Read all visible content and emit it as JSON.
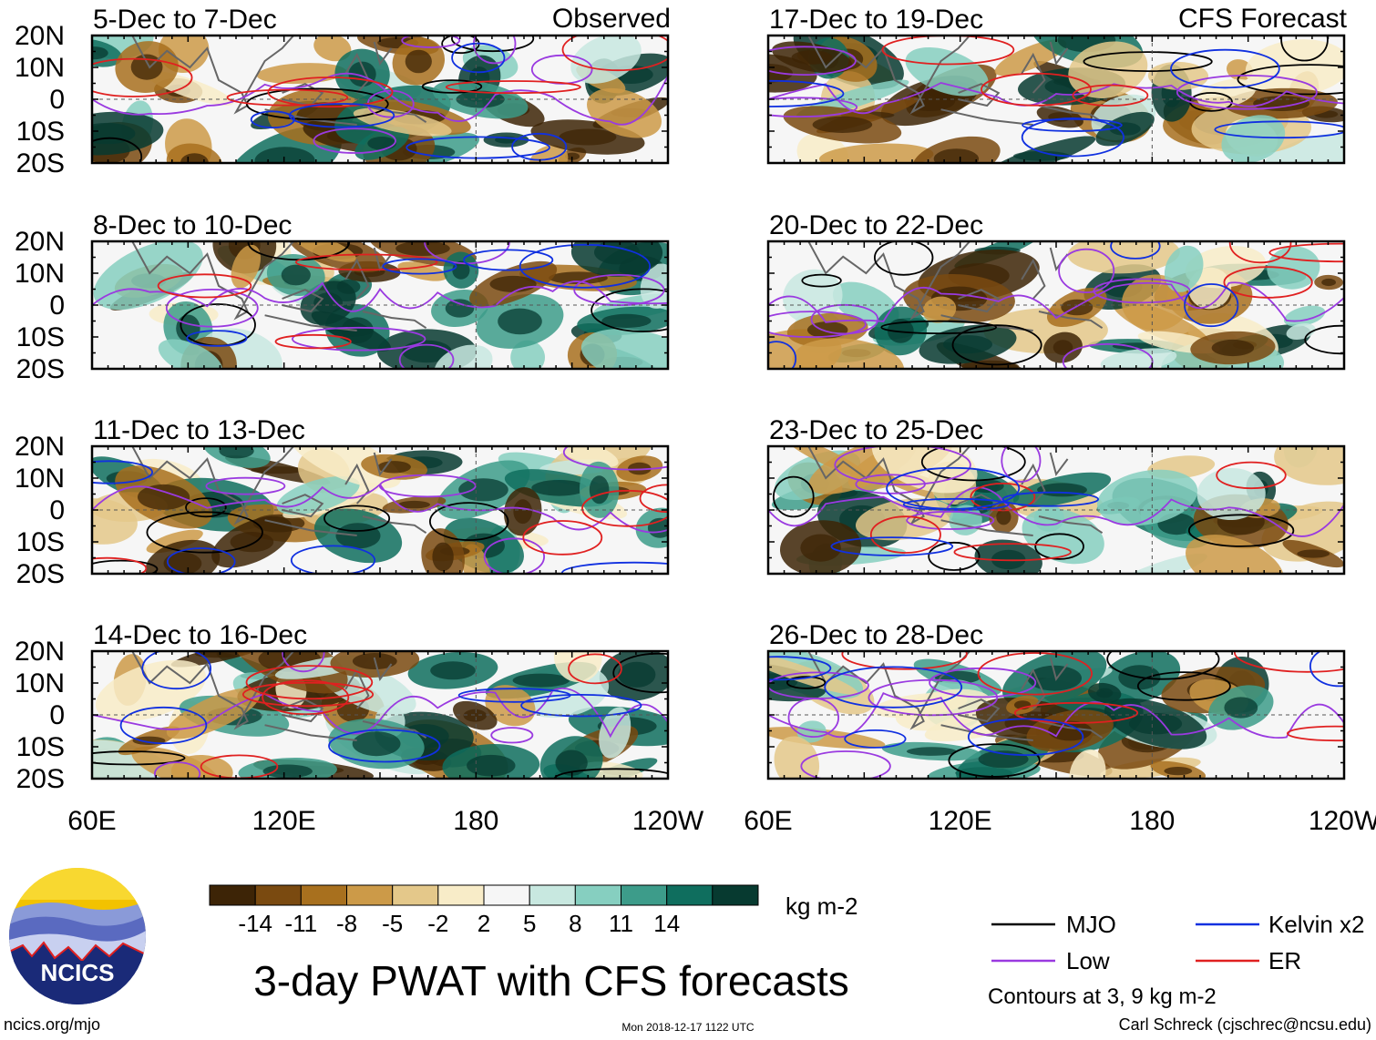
{
  "title": "3-day PWAT with CFS forecasts",
  "observed_label": "Observed",
  "forecast_label": "CFS Forecast",
  "panels_left": [
    {
      "period": "5-Dec to 7-Dec"
    },
    {
      "period": "8-Dec to 10-Dec"
    },
    {
      "period": "11-Dec to 13-Dec"
    },
    {
      "period": "14-Dec to 16-Dec"
    }
  ],
  "panels_right": [
    {
      "period": "17-Dec to 19-Dec"
    },
    {
      "period": "20-Dec to 22-Dec"
    },
    {
      "period": "23-Dec to 25-Dec"
    },
    {
      "period": "26-Dec to 28-Dec"
    }
  ],
  "lat_ticks": [
    "20N",
    "10N",
    "0",
    "10S",
    "20S"
  ],
  "lon_ticks": [
    "60E",
    "120E",
    "180",
    "120W"
  ],
  "colorbar": {
    "unit": "kg m-2",
    "labels": [
      "-14",
      "-11",
      "-8",
      "-5",
      "-2",
      "2",
      "5",
      "8",
      "11",
      "14"
    ],
    "colors": [
      "#3d2406",
      "#7a4a10",
      "#a8701e",
      "#cc9a48",
      "#e4c88a",
      "#f8ecc8",
      "#f6f6f6",
      "#c8e8e0",
      "#86cfc0",
      "#3d9c8a",
      "#0f6e5e",
      "#073a30"
    ]
  },
  "legend": {
    "items": [
      {
        "label": "MJO",
        "color": "#000000"
      },
      {
        "label": "Kelvin x2",
        "color": "#1030e0"
      },
      {
        "label": "Low",
        "color": "#9a3ae0"
      },
      {
        "label": "ER",
        "color": "#e02020"
      }
    ],
    "note": "Contours at 3, 9 kg m-2"
  },
  "logo_text": "NCICS",
  "footer": {
    "url": "ncics.org/mjo",
    "timestamp": "Mon 2018-12-17 1122 UTC",
    "author": "Carl Schreck (cjschrec@ncsu.edu)"
  }
}
